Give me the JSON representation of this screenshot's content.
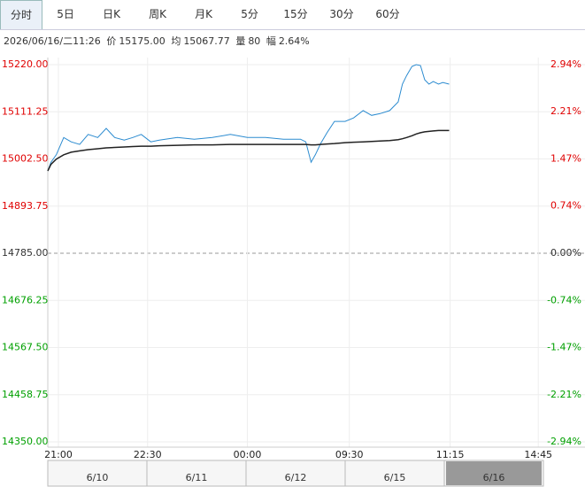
{
  "tabs": [
    "分时",
    "5日",
    "日K",
    "周K",
    "月K",
    "5分",
    "15分",
    "30分",
    "60分"
  ],
  "active_tab": 0,
  "info": {
    "time": "2026/06/16/二11:26",
    "price_label": "价",
    "price": "15175.00",
    "avg_label": "均",
    "avg": "15067.77",
    "vol_label": "量",
    "vol": "80",
    "amp_label": "幅",
    "amp": "2.64%"
  },
  "chart_data": {
    "type": "line",
    "x": [
      -10,
      -7,
      -2,
      5,
      12,
      20,
      28,
      37,
      45,
      53,
      62,
      70,
      78,
      87,
      95,
      112,
      128,
      145,
      162,
      178,
      195,
      212,
      228,
      233,
      238,
      242,
      247,
      253,
      260,
      270,
      278,
      287,
      295,
      303,
      312,
      320,
      324,
      328,
      333,
      337,
      341,
      345,
      349,
      353,
      358,
      362,
      368
    ],
    "series": [
      {
        "name": "价",
        "color": "#2b8bd0",
        "values": [
          14975,
          14995,
          15012,
          15052,
          15042,
          15036,
          15059,
          15052,
          15073,
          15052,
          15046,
          15052,
          15059,
          15042,
          15046,
          15052,
          15048,
          15052,
          15059,
          15052,
          15052,
          15048,
          15048,
          15042,
          14995,
          15012,
          15038,
          15063,
          15089,
          15089,
          15097,
          15114,
          15103,
          15107,
          15114,
          15134,
          15175,
          15195,
          15216,
          15220,
          15218,
          15185,
          15175,
          15181,
          15175,
          15179,
          15175
        ]
      },
      {
        "name": "均",
        "color": "#222222",
        "values": [
          14975,
          14990,
          15002,
          15012,
          15018,
          15021,
          15024,
          15026,
          15028,
          15029,
          15030,
          15031,
          15032,
          15032,
          15033,
          15034,
          15035,
          15035,
          15036,
          15036,
          15036,
          15036,
          15036,
          15036,
          15035,
          15035,
          15036,
          15037,
          15038,
          15040,
          15041,
          15042,
          15043,
          15044,
          15045,
          15047,
          15049,
          15052,
          15056,
          15060,
          15063,
          15065,
          15066,
          15067,
          15068,
          15068,
          15068
        ]
      }
    ],
    "xlim": [
      -10,
      496
    ],
    "xticks": [
      {
        "value": 0,
        "label": "21:00"
      },
      {
        "value": 84,
        "label": "22:30"
      },
      {
        "value": 178,
        "label": "00:00"
      },
      {
        "value": 274,
        "label": "09:30"
      },
      {
        "value": 369,
        "label": "11:15"
      },
      {
        "value": 452,
        "label": "14:45"
      }
    ],
    "ylim": [
      14350,
      15220
    ],
    "yticks": [
      {
        "value": 15220,
        "label": "15220.00"
      },
      {
        "value": 15111.25,
        "label": "15111.25"
      },
      {
        "value": 15002.5,
        "label": "15002.50"
      },
      {
        "value": 14893.75,
        "label": "14893.75"
      },
      {
        "value": 14785,
        "label": "14785.00"
      },
      {
        "value": 14676.25,
        "label": "14676.25"
      },
      {
        "value": 14567.5,
        "label": "14567.50"
      },
      {
        "value": 14458.75,
        "label": "14458.75"
      },
      {
        "value": 14350,
        "label": "14350.00"
      }
    ],
    "y2lim": [
      -2.94,
      2.94
    ],
    "y2ticks": [
      {
        "value": 2.94,
        "label": "2.94%"
      },
      {
        "value": 2.21,
        "label": "2.21%"
      },
      {
        "value": 1.47,
        "label": "1.47%"
      },
      {
        "value": 0.74,
        "label": "0.74%"
      },
      {
        "value": 0,
        "label": "0.00%"
      },
      {
        "value": -0.74,
        "label": "-0.74%"
      },
      {
        "value": -1.47,
        "label": "-1.47%"
      },
      {
        "value": -2.21,
        "label": "-2.21%"
      },
      {
        "value": -2.94,
        "label": "-2.94%"
      }
    ],
    "up_color": "#e00000",
    "down_color": "#00a000",
    "flat_color": "#333333",
    "grid": true,
    "navigator": [
      "6/10",
      "6/11",
      "6/12",
      "6/15",
      "6/16"
    ]
  }
}
